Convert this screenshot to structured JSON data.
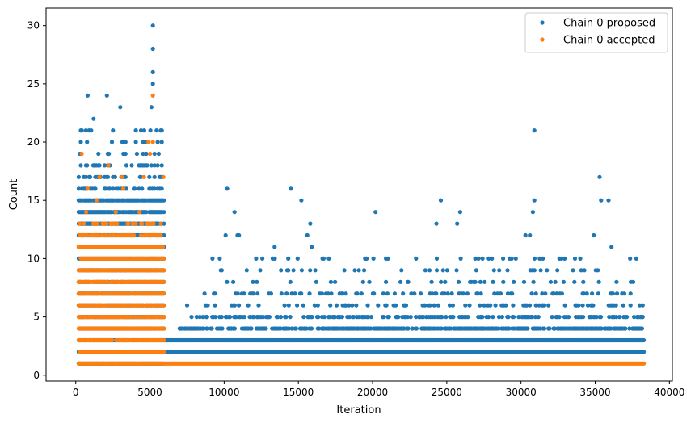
{
  "chart_data": {
    "type": "scatter",
    "title": "",
    "xlabel": "Iteration",
    "ylabel": "Count",
    "xlim": [
      -2000,
      40200
    ],
    "ylim": [
      -0.5,
      31.5
    ],
    "xticks": [
      0,
      5000,
      10000,
      15000,
      20000,
      25000,
      30000,
      35000,
      40000
    ],
    "yticks": [
      0,
      5,
      10,
      15,
      20,
      25,
      30
    ],
    "grid": false,
    "legend_position": "top-right",
    "series": [
      {
        "name": "Chain 0 proposed",
        "color": "#1f77b4",
        "points": [
          [
            5200,
            30
          ],
          [
            5200,
            28
          ],
          [
            5200,
            26
          ],
          [
            5200,
            25
          ],
          [
            5100,
            23
          ],
          [
            800,
            24
          ],
          [
            2100,
            24
          ],
          [
            3000,
            23
          ],
          [
            30900,
            21
          ],
          [
            5800,
            21
          ],
          [
            1200,
            22
          ],
          [
            35300,
            17
          ],
          [
            10200,
            16
          ],
          [
            14500,
            16
          ],
          [
            15200,
            15
          ],
          [
            24600,
            15
          ],
          [
            25900,
            14
          ],
          [
            30900,
            15
          ],
          [
            30800,
            14
          ],
          [
            35400,
            15
          ],
          [
            35900,
            15
          ],
          [
            20200,
            14
          ],
          [
            10700,
            14
          ],
          [
            15800,
            13
          ],
          [
            24300,
            13
          ],
          [
            25700,
            13
          ],
          [
            34900,
            12
          ],
          [
            30300,
            12
          ],
          [
            30600,
            12
          ],
          [
            10900,
            12
          ],
          [
            11000,
            12
          ],
          [
            15600,
            12
          ],
          [
            10100,
            12
          ],
          [
            20900,
            10
          ],
          [
            19600,
            10
          ],
          [
            13400,
            11
          ],
          [
            15900,
            11
          ],
          [
            36100,
            11
          ],
          [
            37400,
            8
          ],
          [
            38000,
            6
          ],
          [
            38200,
            6
          ],
          [
            28800,
            10
          ],
          [
            32000,
            8
          ],
          [
            33600,
            8
          ],
          [
            26800,
            8
          ],
          [
            22400,
            8
          ],
          [
            18200,
            7
          ],
          [
            12200,
            8
          ],
          [
            7500,
            6
          ],
          [
            17800,
            5
          ],
          [
            37900,
            5
          ],
          [
            38200,
            5
          ],
          [
            16600,
            5
          ],
          [
            27400,
            4
          ],
          [
            19000,
            4
          ]
        ],
        "segments": [
          {
            "x0": 200,
            "x1": 6000,
            "y0": 1,
            "y1": 15,
            "density": 0.9
          },
          {
            "x0": 200,
            "x1": 6000,
            "y0": 16,
            "y1": 18,
            "density": 0.35
          },
          {
            "x0": 200,
            "x1": 6000,
            "y0": 19,
            "y1": 21,
            "density": 0.12
          },
          {
            "x0": 6000,
            "x1": 38300,
            "y0": 2,
            "y1": 3,
            "density": 1.0
          },
          {
            "x0": 7000,
            "x1": 38300,
            "y0": 4,
            "y1": 4,
            "density": 0.6
          },
          {
            "x0": 7800,
            "x1": 38300,
            "y0": 5,
            "y1": 5,
            "density": 0.35
          },
          {
            "x0": 8400,
            "x1": 38100,
            "y0": 6,
            "y1": 7,
            "density": 0.18
          },
          {
            "x0": 9000,
            "x1": 37800,
            "y0": 8,
            "y1": 10,
            "density": 0.07
          }
        ]
      },
      {
        "name": "Chain 0 accepted",
        "color": "#ff7f0e",
        "points": [
          [
            5200,
            24
          ],
          [
            4900,
            20
          ],
          [
            5200,
            20
          ],
          [
            5000,
            19
          ],
          [
            2200,
            18
          ],
          [
            400,
            19
          ],
          [
            3100,
            17
          ],
          [
            1600,
            17
          ],
          [
            4600,
            17
          ],
          [
            5900,
            17
          ],
          [
            800,
            16
          ],
          [
            3200,
            16
          ],
          [
            1400,
            15
          ],
          [
            2700,
            14
          ],
          [
            4300,
            14
          ],
          [
            700,
            14
          ],
          [
            1800,
            13
          ]
        ],
        "segments": [
          {
            "x0": 200,
            "x1": 6000,
            "y0": 1,
            "y1": 11,
            "density": 0.9
          },
          {
            "x0": 200,
            "x1": 6000,
            "y0": 12,
            "y1": 13,
            "density": 0.35
          },
          {
            "x0": 6000,
            "x1": 38300,
            "y0": 1,
            "y1": 1,
            "density": 1.0
          }
        ]
      }
    ]
  }
}
